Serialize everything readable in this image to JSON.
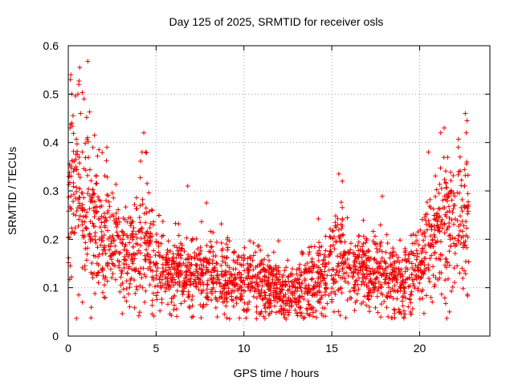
{
  "chart_data": {
    "type": "scatter",
    "title": "Day 125 of 2025, SRMTID for receiver osls",
    "xlabel": "GPS time / hours",
    "ylabel": "SRMTID / TECUs",
    "xlim": [
      0,
      24
    ],
    "ylim": [
      0,
      0.6
    ],
    "xticks": [
      0,
      5,
      10,
      15,
      20
    ],
    "xtick_labels": [
      "0",
      "5",
      "10",
      "15",
      "20"
    ],
    "yticks": [
      0,
      0.1,
      0.2,
      0.3,
      0.4,
      0.5,
      0.6
    ],
    "ytick_labels": [
      "0",
      "0.1",
      "0.2",
      "0.3",
      "0.4",
      "0.5",
      "0.6"
    ],
    "grid": true,
    "marker": "plus",
    "color": "#ee0000",
    "series": [
      {
        "name": "SRMTID",
        "trend": {
          "x": [
            0,
            0.3,
            0.7,
            1.0,
            1.5,
            2.0,
            2.5,
            3.0,
            3.5,
            4.0,
            4.5,
            5.0,
            6.0,
            7.0,
            8.0,
            9.0,
            10.0,
            11.0,
            12.0,
            12.5,
            13.0,
            14.0,
            15.0,
            15.5,
            16.0,
            17.0,
            18.0,
            18.5,
            19.0,
            19.5,
            20.0,
            20.5,
            21.0,
            21.5,
            22.0,
            22.5,
            22.8
          ],
          "y": [
            0.2,
            0.32,
            0.3,
            0.28,
            0.24,
            0.21,
            0.19,
            0.18,
            0.17,
            0.19,
            0.22,
            0.14,
            0.13,
            0.13,
            0.13,
            0.12,
            0.11,
            0.11,
            0.1,
            0.09,
            0.1,
            0.12,
            0.15,
            0.18,
            0.14,
            0.13,
            0.13,
            0.12,
            0.11,
            0.12,
            0.15,
            0.18,
            0.21,
            0.23,
            0.22,
            0.25,
            0.26
          ]
        },
        "highlights": [
          {
            "x": 0.12,
            "y": 0.53
          },
          {
            "x": 0.15,
            "y": 0.54
          },
          {
            "x": 0.2,
            "y": 0.5
          },
          {
            "x": 0.6,
            "y": 0.52
          },
          {
            "x": 0.65,
            "y": 0.555
          },
          {
            "x": 0.55,
            "y": 0.5
          },
          {
            "x": 0.9,
            "y": 0.49
          },
          {
            "x": 0.7,
            "y": 0.46
          },
          {
            "x": 0.1,
            "y": 0.43
          },
          {
            "x": 0.2,
            "y": 0.44
          },
          {
            "x": 1.1,
            "y": 0.41
          },
          {
            "x": 2.2,
            "y": 0.39
          },
          {
            "x": 4.3,
            "y": 0.42
          },
          {
            "x": 4.2,
            "y": 0.38
          },
          {
            "x": 4.4,
            "y": 0.38
          },
          {
            "x": 6.8,
            "y": 0.31
          },
          {
            "x": 15.4,
            "y": 0.335
          },
          {
            "x": 15.6,
            "y": 0.32
          },
          {
            "x": 21.2,
            "y": 0.42
          },
          {
            "x": 21.4,
            "y": 0.43
          },
          {
            "x": 20.5,
            "y": 0.38
          },
          {
            "x": 22.6,
            "y": 0.46
          },
          {
            "x": 22.7,
            "y": 0.445
          },
          {
            "x": 22.65,
            "y": 0.42
          },
          {
            "x": 22.2,
            "y": 0.39
          },
          {
            "x": 22.3,
            "y": 0.37
          },
          {
            "x": 12.4,
            "y": 0.035
          },
          {
            "x": 18.2,
            "y": 0.04
          },
          {
            "x": 21.7,
            "y": 0.05
          }
        ]
      }
    ]
  }
}
